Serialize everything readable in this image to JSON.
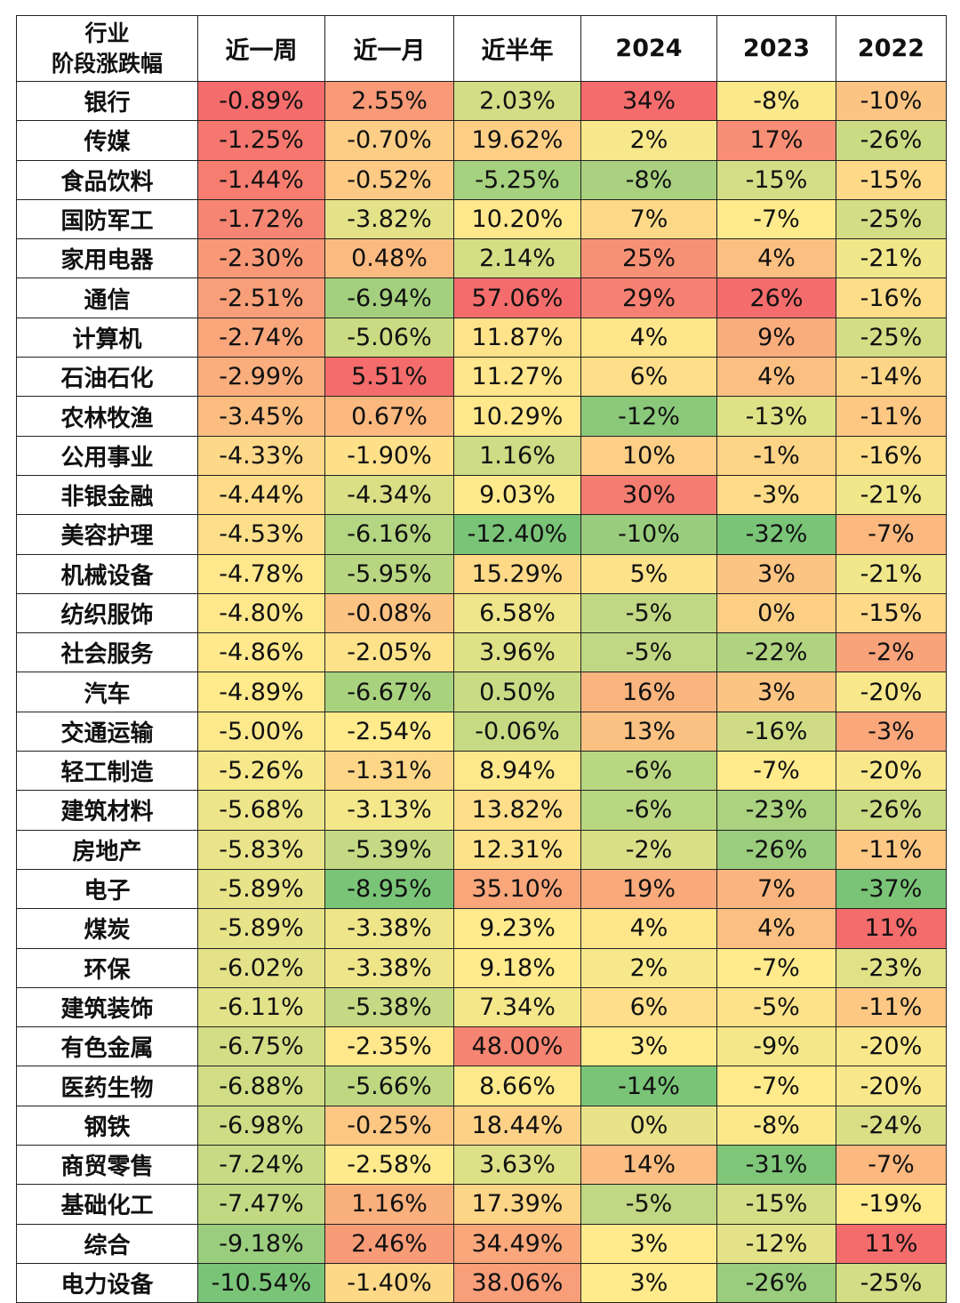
{
  "table": {
    "header": {
      "first": [
        "行业",
        "阶段涨跌幅"
      ],
      "columns": [
        "近一周",
        "近一月",
        "近半年",
        "2024",
        "2023",
        "2022"
      ]
    },
    "rows": [
      [
        "银行",
        "-0.89%",
        "2.55%",
        "2.03%",
        "34%",
        "-8%",
        "-10%"
      ],
      [
        "传媒",
        "-1.25%",
        "-0.70%",
        "19.62%",
        "2%",
        "17%",
        "-26%"
      ],
      [
        "食品饮料",
        "-1.44%",
        "-0.52%",
        "-5.25%",
        "-8%",
        "-15%",
        "-15%"
      ],
      [
        "国防军工",
        "-1.72%",
        "-3.82%",
        "10.20%",
        "7%",
        "-7%",
        "-25%"
      ],
      [
        "家用电器",
        "-2.30%",
        "0.48%",
        "2.14%",
        "25%",
        "4%",
        "-21%"
      ],
      [
        "通信",
        "-2.51%",
        "-6.94%",
        "57.06%",
        "29%",
        "26%",
        "-16%"
      ],
      [
        "计算机",
        "-2.74%",
        "-5.06%",
        "11.87%",
        "4%",
        "9%",
        "-25%"
      ],
      [
        "石油石化",
        "-2.99%",
        "5.51%",
        "11.27%",
        "6%",
        "4%",
        "-14%"
      ],
      [
        "农林牧渔",
        "-3.45%",
        "0.67%",
        "10.29%",
        "-12%",
        "-13%",
        "-11%"
      ],
      [
        "公用事业",
        "-4.33%",
        "-1.90%",
        "1.16%",
        "10%",
        "-1%",
        "-16%"
      ],
      [
        "非银金融",
        "-4.44%",
        "-4.34%",
        "9.03%",
        "30%",
        "-3%",
        "-21%"
      ],
      [
        "美容护理",
        "-4.53%",
        "-6.16%",
        "-12.40%",
        "-10%",
        "-32%",
        "-7%"
      ],
      [
        "机械设备",
        "-4.78%",
        "-5.95%",
        "15.29%",
        "5%",
        "3%",
        "-21%"
      ],
      [
        "纺织服饰",
        "-4.80%",
        "-0.08%",
        "6.58%",
        "-5%",
        "0%",
        "-15%"
      ],
      [
        "社会服务",
        "-4.86%",
        "-2.05%",
        "3.96%",
        "-5%",
        "-22%",
        "-2%"
      ],
      [
        "汽车",
        "-4.89%",
        "-6.67%",
        "0.50%",
        "16%",
        "3%",
        "-20%"
      ],
      [
        "交通运输",
        "-5.00%",
        "-2.54%",
        "-0.06%",
        "13%",
        "-16%",
        "-3%"
      ],
      [
        "轻工制造",
        "-5.26%",
        "-1.31%",
        "8.94%",
        "-6%",
        "-7%",
        "-20%"
      ],
      [
        "建筑材料",
        "-5.68%",
        "-3.13%",
        "13.82%",
        "-6%",
        "-23%",
        "-26%"
      ],
      [
        "房地产",
        "-5.83%",
        "-5.39%",
        "12.31%",
        "-2%",
        "-26%",
        "-11%"
      ],
      [
        "电子",
        "-5.89%",
        "-8.95%",
        "35.10%",
        "19%",
        "7%",
        "-37%"
      ],
      [
        "煤炭",
        "-5.89%",
        "-3.38%",
        "9.23%",
        "4%",
        "4%",
        "11%"
      ],
      [
        "环保",
        "-6.02%",
        "-3.38%",
        "9.18%",
        "2%",
        "-7%",
        "-23%"
      ],
      [
        "建筑装饰",
        "-6.11%",
        "-5.38%",
        "7.34%",
        "6%",
        "-5%",
        "-11%"
      ],
      [
        "有色金属",
        "-6.75%",
        "-2.35%",
        "48.00%",
        "3%",
        "-9%",
        "-20%"
      ],
      [
        "医药生物",
        "-6.88%",
        "-5.66%",
        "8.66%",
        "-14%",
        "-7%",
        "-20%"
      ],
      [
        "钢铁",
        "-6.98%",
        "-0.25%",
        "18.44%",
        "0%",
        "-8%",
        "-24%"
      ],
      [
        "商贸零售",
        "-7.24%",
        "-2.58%",
        "3.63%",
        "14%",
        "-31%",
        "-7%"
      ],
      [
        "基础化工",
        "-7.47%",
        "1.16%",
        "17.39%",
        "-5%",
        "-15%",
        "-19%"
      ],
      [
        "综合",
        "-9.18%",
        "2.46%",
        "34.49%",
        "3%",
        "-12%",
        "11%"
      ],
      [
        "电力设备",
        "-10.54%",
        "-1.40%",
        "38.06%",
        "3%",
        "-26%",
        "-25%"
      ]
    ]
  }
}
